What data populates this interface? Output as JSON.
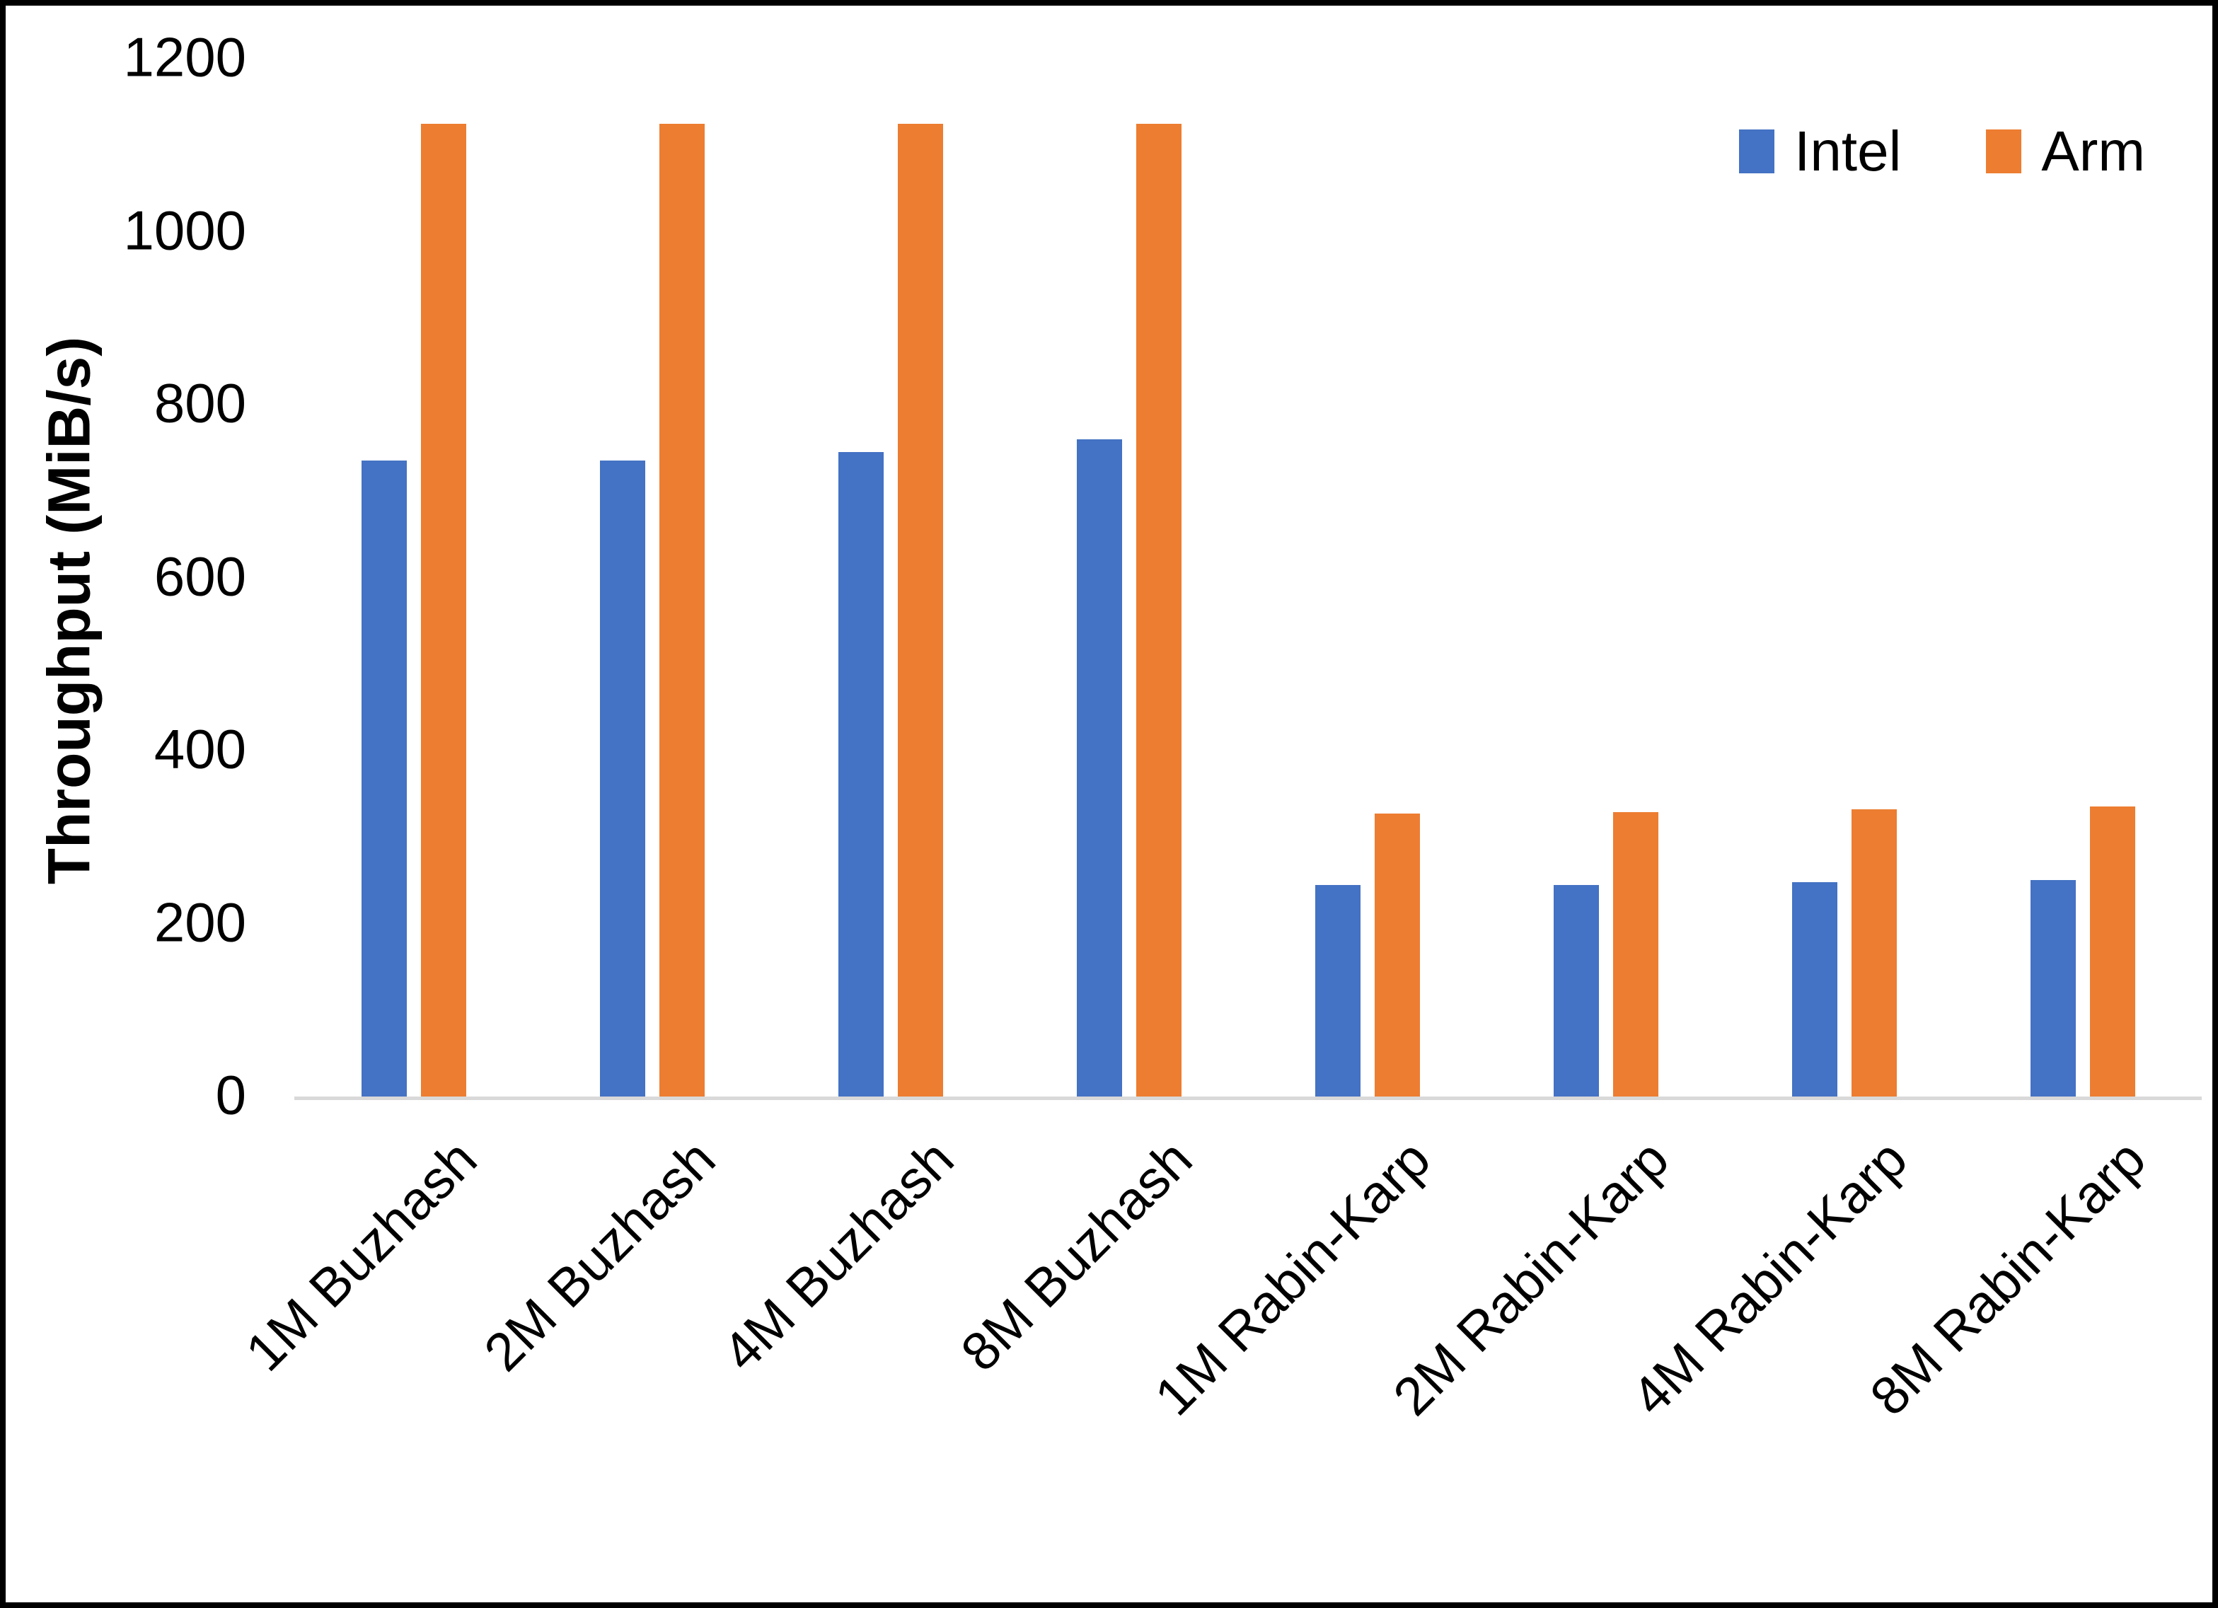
{
  "chart_data": {
    "type": "bar",
    "title": "",
    "xlabel": "",
    "ylabel": "Throughput (MiB/s)",
    "ylim": [
      0,
      1200
    ],
    "yticks": [
      0,
      200,
      400,
      600,
      800,
      1000,
      1200
    ],
    "grid": false,
    "legend_position": "top-right",
    "categories": [
      "1M Buzhash",
      "2M Buzhash",
      "4M Buzhash",
      "8M Buzhash",
      "1M Rabin-Karp",
      "2M Rabin-Karp",
      "4M Rabin-Karp",
      "8M Rabin-Karp"
    ],
    "series": [
      {
        "name": "Intel",
        "color": "#4472C4",
        "values": [
          735,
          735,
          745,
          760,
          245,
          245,
          248,
          250
        ]
      },
      {
        "name": "Arm",
        "color": "#ED7D31",
        "values": [
          1125,
          1125,
          1125,
          1125,
          327,
          329,
          332,
          335
        ]
      }
    ],
    "colors": {
      "axis_line": "#D9D9D9",
      "text": "#000000",
      "frame_border": "#000000",
      "background": "#FFFFFF"
    }
  }
}
